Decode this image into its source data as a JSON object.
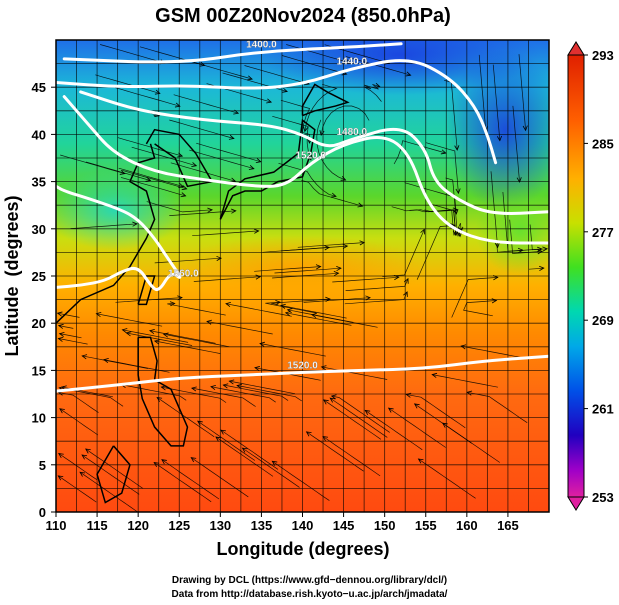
{
  "chart_data": {
    "type": "heatmap",
    "title": "GSM 00Z20Nov2024 (850.0hPa)",
    "xlabel": "Longitude (degrees)",
    "ylabel": "Latitude  (degrees)",
    "xlim": [
      110,
      170
    ],
    "ylim": [
      0,
      50
    ],
    "x_ticks": [
      "110",
      "115",
      "120",
      "125",
      "130",
      "135",
      "140",
      "145",
      "150",
      "155",
      "160",
      "165"
    ],
    "y_ticks": [
      "0",
      "5",
      "10",
      "15",
      "20",
      "25",
      "30",
      "35",
      "40",
      "45"
    ],
    "grid": true,
    "colorbar": {
      "min": 253,
      "max": 293,
      "tick_labels": [
        "293",
        "285",
        "277",
        "269",
        "261",
        "253"
      ],
      "colors": [
        "#e02080",
        "#c000c0",
        "#4000c8",
        "#0030e0",
        "#0090e8",
        "#00d0c0",
        "#20e070",
        "#50e020",
        "#c8e000",
        "#ffa000",
        "#ff5000",
        "#e02000"
      ]
    },
    "contours": [
      {
        "label": "1400.0",
        "points": [
          [
            111,
            48
          ],
          [
            125,
            47.5
          ],
          [
            135,
            48.8
          ],
          [
            145,
            49.2
          ],
          [
            152,
            49.6
          ]
        ]
      },
      {
        "label": "1440.0",
        "points": [
          [
            110,
            45.5
          ],
          [
            118,
            45
          ],
          [
            126,
            45.2
          ],
          [
            134,
            44.8
          ],
          [
            140,
            45.3
          ],
          [
            146,
            47
          ],
          [
            153,
            48.2
          ],
          [
            158,
            46
          ],
          [
            161,
            43
          ],
          [
            162.5,
            40
          ],
          [
            163.5,
            37
          ]
        ]
      },
      {
        "label": "1480.0",
        "points": [
          [
            113,
            44.5
          ],
          [
            120,
            42.5
          ],
          [
            128,
            41.5
          ],
          [
            136,
            41
          ],
          [
            140,
            40
          ],
          [
            143,
            38.5
          ],
          [
            146,
            39.5
          ],
          [
            152,
            41
          ],
          [
            155,
            38.5
          ],
          [
            156,
            35
          ],
          [
            159,
            33
          ],
          [
            163,
            31.5
          ],
          [
            170,
            31.8
          ]
        ]
      },
      {
        "label": "1520.0",
        "points": [
          [
            111,
            44
          ],
          [
            114,
            41
          ],
          [
            117,
            38
          ],
          [
            122,
            36
          ],
          [
            128,
            35.2
          ],
          [
            134,
            34.5
          ],
          [
            138,
            34.5
          ],
          [
            141,
            37
          ],
          [
            145,
            39
          ],
          [
            150,
            40
          ],
          [
            153,
            38
          ],
          [
            155,
            33
          ],
          [
            158,
            30
          ],
          [
            163,
            28.5
          ],
          [
            170,
            28.5
          ]
        ]
      },
      {
        "label": "1560.0",
        "points": [
          [
            110,
            23.8
          ],
          [
            113,
            24
          ],
          [
            116,
            24.5
          ],
          [
            118,
            25.5
          ],
          [
            120,
            26
          ],
          [
            121.5,
            24
          ],
          [
            122.5,
            23.3
          ],
          [
            124,
            25.5
          ],
          [
            125.5,
            24.5
          ],
          [
            123.5,
            27
          ],
          [
            122,
            29
          ],
          [
            120,
            31
          ],
          [
            118,
            32
          ],
          [
            114,
            33.2
          ],
          [
            111,
            34
          ],
          [
            110,
            34.5
          ]
        ]
      },
      {
        "label": "1520.0",
        "points": [
          [
            110,
            12.8
          ],
          [
            118,
            13.5
          ],
          [
            125,
            14.2
          ],
          [
            133,
            14.5
          ],
          [
            140,
            14.8
          ],
          [
            147,
            15
          ],
          [
            155,
            15.2
          ],
          [
            162,
            16
          ],
          [
            170,
            16.5
          ]
        ]
      }
    ],
    "temperature_field_bands": [
      {
        "lat": 48,
        "temp": 262
      },
      {
        "lat": 44,
        "temp": 265
      },
      {
        "lat": 40,
        "temp": 270
      },
      {
        "lat": 35,
        "temp": 274
      },
      {
        "lat": 30,
        "temp": 279
      },
      {
        "lat": 26,
        "temp": 283
      },
      {
        "lat": 20,
        "temp": 286
      },
      {
        "lat": 14,
        "temp": 288
      },
      {
        "lat": 8,
        "temp": 289
      },
      {
        "lat": 2,
        "temp": 290
      }
    ]
  },
  "footer": {
    "line1": "Drawing by DCL (https://www.gfd−dennou.org/library/dcl/)",
    "line2": "Data from http://database.rish.kyoto−u.ac.jp/arch/jmadata/"
  }
}
